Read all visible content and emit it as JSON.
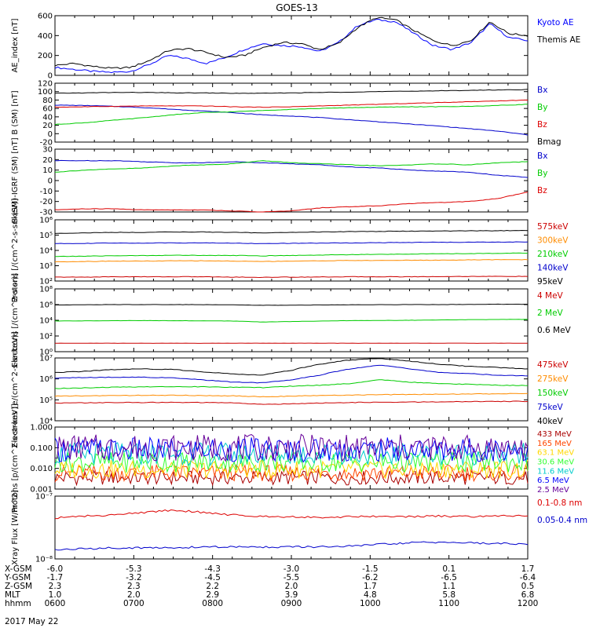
{
  "title": "GOES-13",
  "date_label": "2017 May 22",
  "footer": {
    "rows": [
      {
        "label": "X-GSM",
        "values": [
          "-6.0",
          "-5.3",
          "-4.3",
          "-3.0",
          "-1.5",
          "0.1",
          "1.7"
        ]
      },
      {
        "label": "Y-GSM",
        "values": [
          "-1.7",
          "-3.2",
          "-4.5",
          "-5.5",
          "-6.2",
          "-6.5",
          "-6.4"
        ]
      },
      {
        "label": "Z-GSM",
        "values": [
          "2.3",
          "2.3",
          "2.2",
          "2.0",
          "1.7",
          "1.1",
          "0.5"
        ]
      },
      {
        "label": "MLT",
        "values": [
          "1.0",
          "2.0",
          "2.9",
          "3.9",
          "4.8",
          "5.8",
          "6.8"
        ]
      },
      {
        "label": "hhmm",
        "values": [
          "0600",
          "0700",
          "0800",
          "0900",
          "1000",
          "1100",
          "1200"
        ]
      }
    ]
  },
  "chart_data": [
    {
      "type": "line",
      "ylabel": "AE_index [nT]",
      "ylim": [
        0,
        600
      ],
      "yticks": [
        "0",
        "200",
        "400",
        "600"
      ],
      "series": [
        {
          "name": "Kyoto AE",
          "color": "#0000ff",
          "values": [
            80,
            60,
            40,
            30,
            40,
            110,
            200,
            170,
            120,
            180,
            260,
            320,
            300,
            290,
            240,
            330,
            500,
            560,
            540,
            420,
            300,
            260,
            330,
            520,
            380,
            350
          ]
        },
        {
          "name": "Themis AE",
          "color": "#000000",
          "values": [
            100,
            120,
            90,
            70,
            80,
            150,
            250,
            270,
            230,
            180,
            200,
            280,
            330,
            320,
            260,
            320,
            480,
            580,
            560,
            450,
            350,
            300,
            350,
            540,
            420,
            400
          ]
        }
      ]
    },
    {
      "type": "line",
      "ylabel": "B (SM) [nT]",
      "ylim": [
        -20,
        120
      ],
      "yticks": [
        "-20",
        "0",
        "20",
        "40",
        "60",
        "80",
        "100",
        "120"
      ],
      "series": [
        {
          "name": "Bx",
          "color": "#0000cc",
          "values": [
            68,
            67,
            65,
            62,
            58,
            54,
            50,
            45,
            42,
            38,
            33,
            28,
            23,
            18,
            12,
            6,
            -3
          ]
        },
        {
          "name": "By",
          "color": "#00cc00",
          "values": [
            22,
            26,
            32,
            38,
            45,
            50,
            52,
            55,
            58,
            60,
            62,
            63,
            64,
            64,
            65,
            67,
            70
          ]
        },
        {
          "name": "Bz",
          "color": "#dd0000",
          "values": [
            63,
            64,
            65,
            66,
            66,
            66,
            64,
            63,
            64,
            66,
            68,
            70,
            72,
            74,
            76,
            78,
            80
          ]
        },
        {
          "name": "Bmag",
          "color": "#000000",
          "values": [
            96,
            97,
            98,
            98,
            97,
            97,
            96,
            96,
            97,
            98,
            99,
            100,
            101,
            102,
            103,
            104,
            105
          ]
        }
      ]
    },
    {
      "type": "line",
      "ylabel": "B (SM)-IGRF (SM) [nT]",
      "ylim": [
        -30,
        30
      ],
      "yticks": [
        "-30",
        "-20",
        "-10",
        "0",
        "10",
        "20",
        "30"
      ],
      "series": [
        {
          "name": "Bx",
          "color": "#0000cc",
          "values": [
            19,
            19,
            19,
            18,
            17,
            17,
            18,
            17,
            16,
            15,
            13,
            12,
            10,
            9,
            8,
            5,
            3
          ]
        },
        {
          "name": "By",
          "color": "#00cc00",
          "values": [
            8,
            10,
            11,
            12,
            14,
            15,
            16,
            19,
            17,
            16,
            15,
            14,
            15,
            16,
            15,
            17,
            18
          ]
        },
        {
          "name": "Bz",
          "color": "#dd0000",
          "values": [
            -28,
            -27,
            -27,
            -28,
            -28,
            -28,
            -29,
            -30,
            -29,
            -26,
            -25,
            -24,
            -22,
            -21,
            -20,
            -17,
            -11
          ]
        }
      ]
    },
    {
      "type": "line",
      "ylabel": "Protons [/(cm^2-s-sr-keV)]",
      "ylim": [
        100,
        1000000
      ],
      "log": true,
      "yticks": [
        "10^2",
        "10^3",
        "10^4",
        "10^5",
        "10^6"
      ],
      "series": [
        {
          "name": "575keV",
          "color": "#cc0000",
          "values": [
            180,
            180,
            190,
            190,
            190,
            190,
            180,
            175,
            180,
            185,
            190,
            190,
            190,
            195,
            200,
            200,
            200
          ]
        },
        {
          "name": "300keV",
          "color": "#ff8c00",
          "values": [
            1800,
            1900,
            2000,
            2000,
            2100,
            2100,
            2000,
            1900,
            2000,
            2100,
            2200,
            2200,
            2300,
            2300,
            2400,
            2500,
            2500
          ]
        },
        {
          "name": "210keV",
          "color": "#00cc00",
          "values": [
            4000,
            4200,
            4500,
            4600,
            4800,
            4800,
            4700,
            4400,
            4700,
            5000,
            5300,
            5500,
            5800,
            6000,
            6200,
            6500,
            6800
          ]
        },
        {
          "name": "140keV",
          "color": "#0000cc",
          "values": [
            28000,
            29000,
            30000,
            30000,
            31000,
            31000,
            30000,
            28000,
            29000,
            30000,
            31000,
            32000,
            33000,
            34000,
            34000,
            35000,
            36000
          ]
        },
        {
          "name": "95keV",
          "color": "#000000",
          "values": [
            130000,
            140000,
            150000,
            150000,
            160000,
            160000,
            150000,
            140000,
            150000,
            160000,
            170000,
            175000,
            180000,
            185000,
            190000,
            195000,
            200000
          ]
        }
      ]
    },
    {
      "type": "line",
      "ylabel": "Electrons [/(cm^2-s-sr)]",
      "ylim": [
        1,
        100000000
      ],
      "log": true,
      "yticks": [
        "10^0",
        "10^2",
        "10^4",
        "10^6",
        "10^8"
      ],
      "series": [
        {
          "name": "4 MeV",
          "color": "#cc0000",
          "values": [
            12,
            12,
            12,
            12,
            12,
            12,
            12,
            12,
            12,
            12,
            12,
            12,
            12,
            12,
            12,
            12,
            12
          ]
        },
        {
          "name": "2 MeV",
          "color": "#00cc00",
          "values": [
            8000,
            8500,
            9000,
            9000,
            9000,
            8500,
            8000,
            6000,
            7000,
            8000,
            9000,
            9500,
            10000,
            11000,
            12000,
            12500,
            13000
          ]
        },
        {
          "name": "0.6 MeV",
          "color": "#000000",
          "values": [
            900000,
            950000,
            1000000,
            1000000,
            1000000,
            980000,
            950000,
            800000,
            850000,
            900000,
            950000,
            980000,
            1000000,
            1000000,
            1050000,
            1100000,
            1100000
          ]
        }
      ]
    },
    {
      "type": "line",
      "ylabel": "Electrons [e/(cm^2-s-sr-keV)]",
      "ylim": [
        10000,
        10000000
      ],
      "log": true,
      "yticks": [
        "10^4",
        "10^5",
        "10^6",
        "10^7"
      ],
      "series": [
        {
          "name": "475keV",
          "color": "#cc0000",
          "values": [
            70000,
            72000,
            74000,
            75000,
            75000,
            74000,
            72000,
            60000,
            65000,
            70000,
            74000,
            76000,
            78000,
            80000,
            82000,
            84000,
            85000
          ]
        },
        {
          "name": "275keV",
          "color": "#ff8c00",
          "values": [
            150000,
            155000,
            160000,
            165000,
            165000,
            160000,
            155000,
            140000,
            150000,
            160000,
            170000,
            175000,
            180000,
            185000,
            190000,
            195000,
            200000
          ]
        },
        {
          "name": "150keV",
          "color": "#00cc00",
          "values": [
            350000,
            370000,
            400000,
            420000,
            430000,
            420000,
            400000,
            380000,
            450000,
            500000,
            600000,
            900000,
            700000,
            600000,
            550000,
            500000,
            480000
          ]
        },
        {
          "name": "75keV",
          "color": "#0000cc",
          "values": [
            1100000,
            1150000,
            1200000,
            1200000,
            1100000,
            900000,
            700000,
            650000,
            900000,
            1500000,
            3000000,
            4500000,
            3000000,
            2000000,
            1800000,
            1500000,
            1400000
          ]
        },
        {
          "name": "40keV",
          "color": "#000000",
          "values": [
            2000000,
            2300000,
            2800000,
            3000000,
            2800000,
            2200000,
            1700000,
            1500000,
            2500000,
            5000000,
            8000000,
            9500000,
            7000000,
            5000000,
            4000000,
            3500000,
            3000000
          ]
        }
      ]
    },
    {
      "type": "line",
      "ylabel": "Protons [p/(cm^2-s-sr-keV)]",
      "ylim": [
        0.001,
        1
      ],
      "log": true,
      "yticks": [
        "0.001",
        "0.010",
        "0.100",
        "1.000"
      ],
      "series": [
        {
          "name": "433 MeV",
          "color": "#aa0000",
          "values": [
            0.0035,
            0.0035,
            0.0035,
            0.0035,
            0.0035
          ]
        },
        {
          "name": "165 MeV",
          "color": "#ff4500",
          "values": [
            0.006,
            0.006,
            0.006,
            0.006,
            0.006
          ]
        },
        {
          "name": "63.1 MeV",
          "color": "#ffd700",
          "values": [
            0.009,
            0.009,
            0.009,
            0.009,
            0.009
          ]
        },
        {
          "name": "30.6 MeV",
          "color": "#33ff33",
          "values": [
            0.02,
            0.02,
            0.02,
            0.02,
            0.02
          ]
        },
        {
          "name": "11.6 MeV",
          "color": "#00cccc",
          "values": [
            0.05,
            0.05,
            0.05,
            0.05,
            0.05
          ]
        },
        {
          "name": "6.5 MeV",
          "color": "#0000ff",
          "values": [
            0.08,
            0.08,
            0.08,
            0.08,
            0.08
          ]
        },
        {
          "name": "2.5 MeV",
          "color": "#660099",
          "values": [
            0.1,
            0.1,
            0.1,
            0.1,
            0.1
          ]
        }
      ]
    },
    {
      "type": "line",
      "ylabel": "Xray Flux [W/m^2]",
      "ylim": [
        1e-08,
        1e-07
      ],
      "log": true,
      "yticks": [
        "10^-8",
        "10^-7"
      ],
      "series": [
        {
          "name": "0.1-0.8 nm",
          "color": "#dd0000",
          "values": [
            4.5e-08,
            4.8e-08,
            5e-08,
            5.5e-08,
            6e-08,
            5.5e-08,
            5e-08,
            4.8e-08,
            4.7e-08,
            4.6e-08,
            4.7e-08,
            4.8e-08,
            4.7e-08,
            4.8e-08,
            4.7e-08,
            4.8e-08,
            4.9e-08
          ]
        },
        {
          "name": "0.05-0.4 nm",
          "color": "#0000cc",
          "values": [
            1.4e-08,
            1.45e-08,
            1.5e-08,
            1.5e-08,
            1.5e-08,
            1.55e-08,
            1.55e-08,
            1.55e-08,
            1.55e-08,
            1.55e-08,
            1.6e-08,
            1.7e-08,
            1.8e-08,
            1.85e-08,
            1.8e-08,
            1.75e-08,
            1.75e-08
          ]
        }
      ]
    }
  ]
}
